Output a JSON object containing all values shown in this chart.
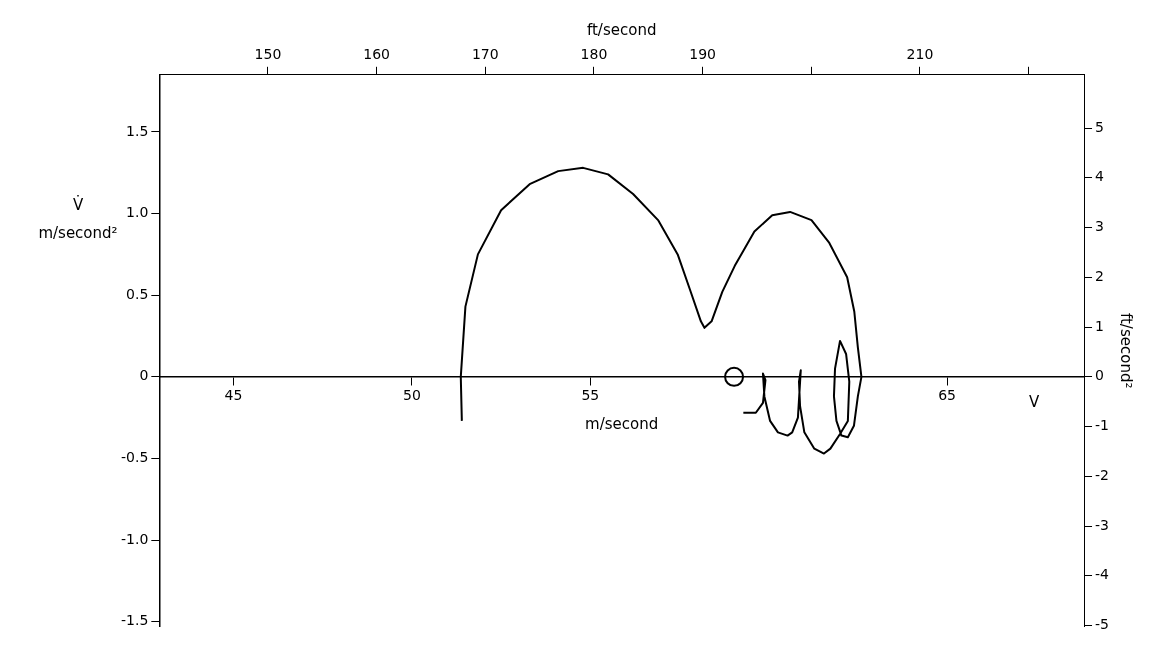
{
  "chart_data": {
    "type": "line",
    "xlabel": "m/second",
    "x2label": "ft/second",
    "ylabel": "m/second²",
    "y2label": "ft/second²",
    "annotations": [
      "V̇",
      "V"
    ],
    "xlim": [
      42.92,
      68.84
    ],
    "xticks": [
      45,
      50,
      55,
      65
    ],
    "x2lim": [
      140,
      225.1
    ],
    "x2ticks": [
      150,
      160,
      170,
      180,
      190,
      {
        "value": 200,
        "label": null
      },
      210,
      {
        "value": 220,
        "label": null
      }
    ],
    "ylim": [
      -1.53,
      1.85
    ],
    "yticks": [
      -1.5,
      {
        "value": -1,
        "label": "-1.0"
      },
      -0.5,
      0,
      0.5,
      {
        "value": 1,
        "label": "1.0"
      },
      1.5
    ],
    "y2lim": [
      -5.02,
      6.07
    ],
    "y2ticks": [
      -5,
      -4,
      -3,
      -2,
      -1,
      0,
      1,
      2,
      3,
      4,
      5
    ],
    "series": [
      {
        "type": "line",
        "color": "#000000",
        "marker": "none",
        "x": [
          51.4,
          51.37,
          51.5,
          51.85,
          52.5,
          53.3,
          54.1,
          54.8,
          55.5,
          56.2,
          56.9,
          57.45,
          57.8,
          58.1,
          58.2,
          58.4,
          58.7,
          59.05,
          59.6,
          60.1,
          60.6,
          61.2,
          61.7,
          62.2,
          62.4,
          62.5,
          62.6,
          62.5,
          62.39,
          62.22,
          62.04,
          61.9,
          61.83,
          61.86,
          62.0,
          62.17,
          62.26,
          62.22,
          62.0,
          61.73,
          61.55,
          61.28,
          61.0,
          60.88,
          60.85,
          60.9,
          60.82,
          60.66,
          60.53,
          60.26,
          60.04,
          59.88,
          59.84,
          59.91,
          59.84,
          59.64,
          59.29
        ],
        "values": [
          -0.27,
          0,
          0.43,
          0.75,
          1.02,
          1.18,
          1.26,
          1.28,
          1.24,
          1.12,
          0.96,
          0.75,
          0.53,
          0.34,
          0.3,
          0.34,
          0.52,
          0.68,
          0.89,
          0.99,
          1.01,
          0.96,
          0.82,
          0.61,
          0.4,
          0.18,
          0,
          -0.12,
          -0.3,
          -0.37,
          -0.36,
          -0.27,
          -0.12,
          0.05,
          0.22,
          0.14,
          -0.03,
          -0.27,
          -0.35,
          -0.44,
          -0.47,
          -0.44,
          -0.34,
          -0.18,
          -0.03,
          0.04,
          -0.25,
          -0.34,
          -0.36,
          -0.34,
          -0.27,
          -0.12,
          0.02,
          -0.02,
          -0.16,
          -0.22,
          -0.22
        ]
      },
      {
        "type": "scatter",
        "color": "#000000",
        "marker": "circle",
        "x": [
          59.03
        ],
        "values": [
          0
        ]
      }
    ]
  }
}
